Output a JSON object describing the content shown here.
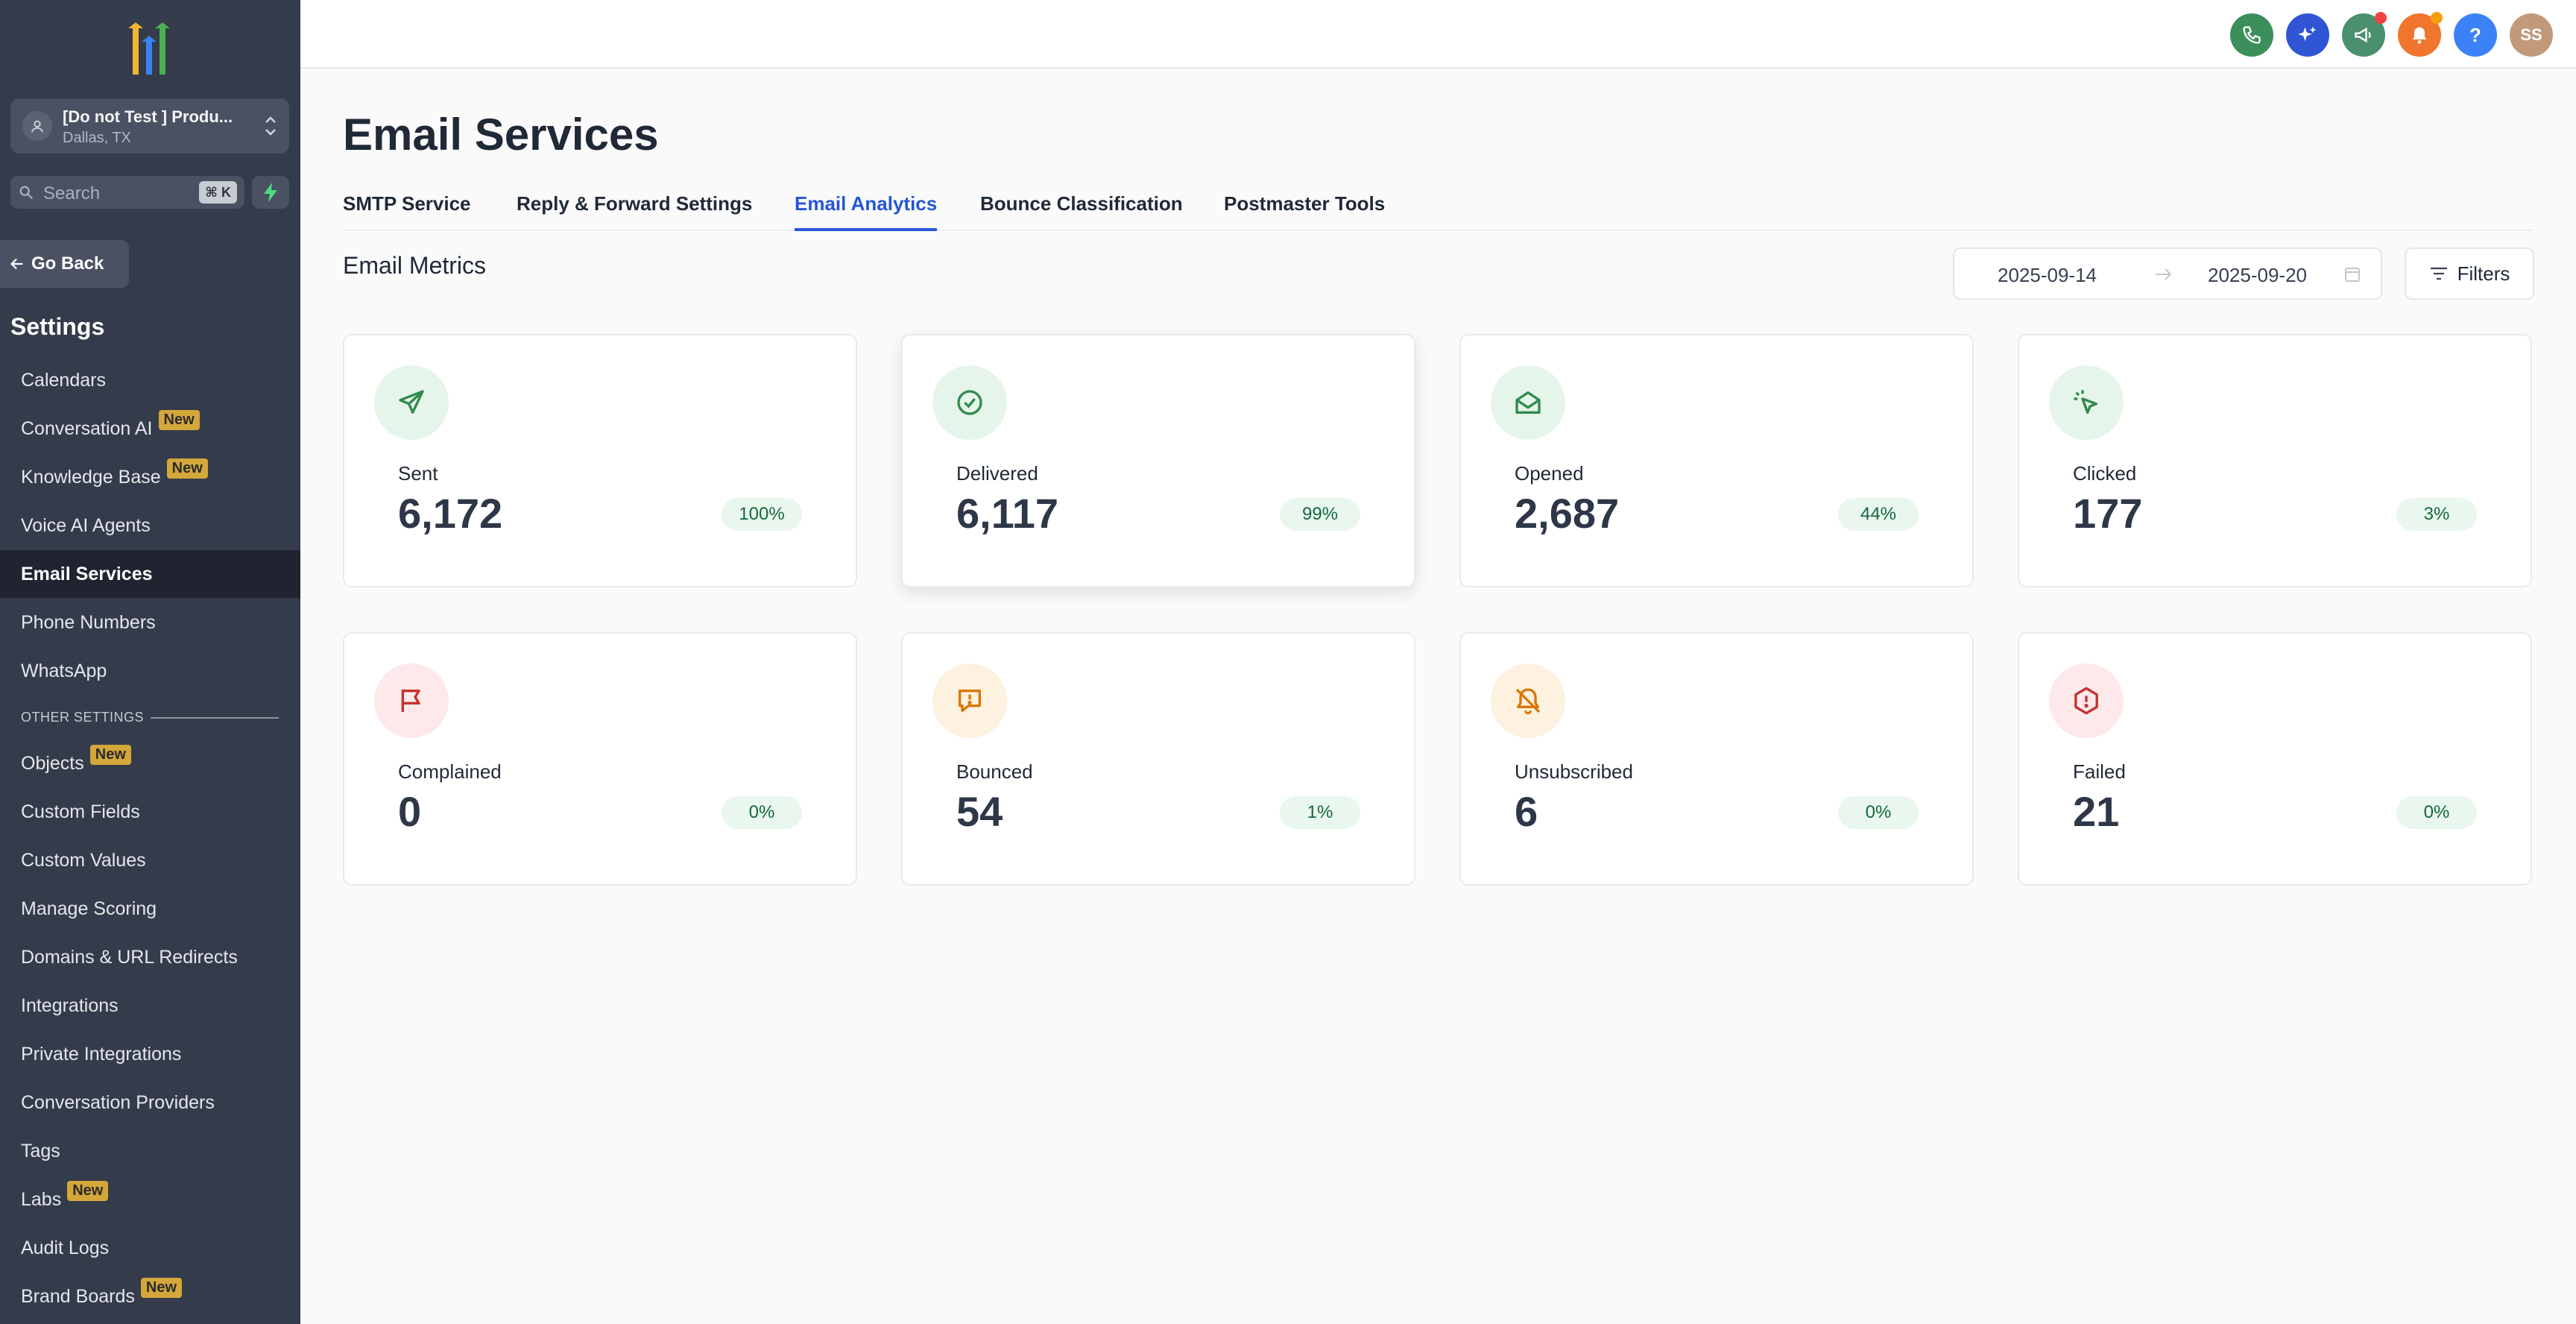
{
  "colors": {
    "sidebar_bg": "#343b4a",
    "accent_blue": "#2457d6",
    "new_badge": "#d4a73a",
    "pct_badge_bg": "#e9f7ee",
    "pct_badge_text": "#15683a"
  },
  "sidebar": {
    "location_name": "[Do not Test ] Produ...",
    "location_city": "Dallas, TX",
    "search_placeholder": "Search",
    "search_shortcut": "⌘ K",
    "go_back_label": "Go Back",
    "settings_title": "Settings",
    "items": [
      {
        "label": "Calendars",
        "badge": ""
      },
      {
        "label": "Conversation AI",
        "badge": "New"
      },
      {
        "label": "Knowledge Base",
        "badge": "New"
      },
      {
        "label": "Voice AI Agents",
        "badge": ""
      },
      {
        "label": "Email Services",
        "badge": "",
        "active": true
      },
      {
        "label": "Phone Numbers",
        "badge": ""
      },
      {
        "label": "WhatsApp",
        "badge": ""
      }
    ],
    "other_settings_label": "OTHER SETTINGS",
    "other_items": [
      {
        "label": "Objects",
        "badge": "New"
      },
      {
        "label": "Custom Fields",
        "badge": ""
      },
      {
        "label": "Custom Values",
        "badge": ""
      },
      {
        "label": "Manage Scoring",
        "badge": ""
      },
      {
        "label": "Domains & URL Redirects",
        "badge": ""
      },
      {
        "label": "Integrations",
        "badge": ""
      },
      {
        "label": "Private Integrations",
        "badge": ""
      },
      {
        "label": "Conversation Providers",
        "badge": ""
      },
      {
        "label": "Tags",
        "badge": ""
      },
      {
        "label": "Labs",
        "badge": "New"
      },
      {
        "label": "Audit Logs",
        "badge": ""
      },
      {
        "label": "Brand Boards",
        "badge": "New"
      }
    ]
  },
  "topbar": {
    "buttons": [
      {
        "icon": "phone-icon",
        "color": "#3a8f5a"
      },
      {
        "icon": "sparkle-icon",
        "color": "#2f55d4"
      },
      {
        "icon": "megaphone-icon",
        "color": "#4a8f6e"
      },
      {
        "icon": "bell-icon",
        "color": "#f0752d"
      },
      {
        "icon": "help-icon",
        "color": "#3b82f6",
        "text": "?"
      },
      {
        "icon": "avatar",
        "color": "#c19a7b",
        "text": "SS"
      }
    ]
  },
  "page": {
    "title": "Email Services",
    "tabs": [
      {
        "label": "SMTP Service"
      },
      {
        "label": "Reply & Forward Settings"
      },
      {
        "label": "Email Analytics",
        "active": true
      },
      {
        "label": "Bounce Classification"
      },
      {
        "label": "Postmaster Tools"
      }
    ],
    "section_title": "Email Metrics",
    "date_start": "2025-09-14",
    "date_end": "2025-09-20",
    "filters_label": "Filters"
  },
  "metrics": [
    {
      "label": "Sent",
      "value": "6,172",
      "pct": "100%",
      "icon": "send-icon",
      "tone": "green"
    },
    {
      "label": "Delivered",
      "value": "6,117",
      "pct": "99%",
      "icon": "check-circle-icon",
      "tone": "green"
    },
    {
      "label": "Opened",
      "value": "2,687",
      "pct": "44%",
      "icon": "mail-open-icon",
      "tone": "green"
    },
    {
      "label": "Clicked",
      "value": "177",
      "pct": "3%",
      "icon": "cursor-click-icon",
      "tone": "green"
    },
    {
      "label": "Complained",
      "value": "0",
      "pct": "0%",
      "icon": "flag-icon",
      "tone": "red"
    },
    {
      "label": "Bounced",
      "value": "54",
      "pct": "1%",
      "icon": "alert-message-icon",
      "tone": "orange"
    },
    {
      "label": "Unsubscribed",
      "value": "6",
      "pct": "0%",
      "icon": "bell-off-icon",
      "tone": "orange"
    },
    {
      "label": "Failed",
      "value": "21",
      "pct": "0%",
      "icon": "alert-hexagon-icon",
      "tone": "red"
    }
  ]
}
